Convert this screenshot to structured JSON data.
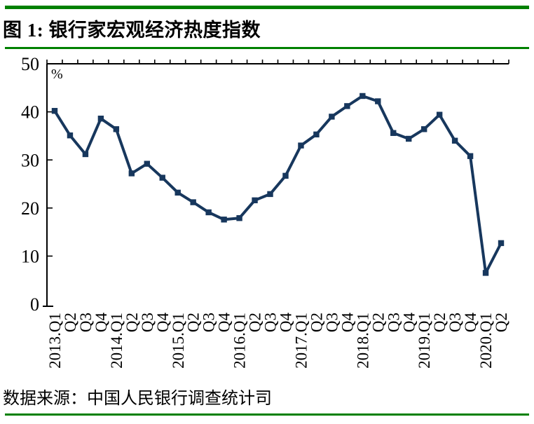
{
  "header": {
    "title": "图 1: 银行家宏观经济热度指数"
  },
  "footer": {
    "source": "数据来源：中国人民银行调查统计司"
  },
  "colors": {
    "accent_green": "#008000",
    "series_navy": "#17375D",
    "axis_black": "#000000"
  },
  "chart_data": {
    "type": "line",
    "title": "银行家宏观经济热度指数",
    "unit_label": "%",
    "xlabel": "",
    "ylabel": "%",
    "ylim": [
      0,
      50
    ],
    "yticks": [
      0,
      10,
      20,
      30,
      40,
      50
    ],
    "grid": false,
    "legend_position": "none",
    "marker": "square",
    "categories": [
      "2013.Q1",
      "Q2",
      "Q3",
      "Q4",
      "2014.Q1",
      "Q2",
      "Q3",
      "Q4",
      "2015.Q1",
      "Q2",
      "Q3",
      "Q4",
      "2016.Q1",
      "Q2",
      "Q3",
      "Q4",
      "2017.Q1",
      "Q2",
      "Q3",
      "Q4",
      "2018.Q1",
      "Q2",
      "Q3",
      "Q4",
      "2019.Q1",
      "Q2",
      "Q3",
      "Q4",
      "2020.Q1",
      "Q2"
    ],
    "series": [
      {
        "name": "银行家宏观经济热度指数",
        "values": [
          40.2,
          35.1,
          31.2,
          38.6,
          36.4,
          27.2,
          29.2,
          26.3,
          23.2,
          21.2,
          19.1,
          17.6,
          17.9,
          21.6,
          22.9,
          26.7,
          33.0,
          35.3,
          39.0,
          41.2,
          43.3,
          42.2,
          35.6,
          34.4,
          36.4,
          39.4,
          34.0,
          30.8,
          6.5,
          12.7
        ]
      }
    ]
  }
}
